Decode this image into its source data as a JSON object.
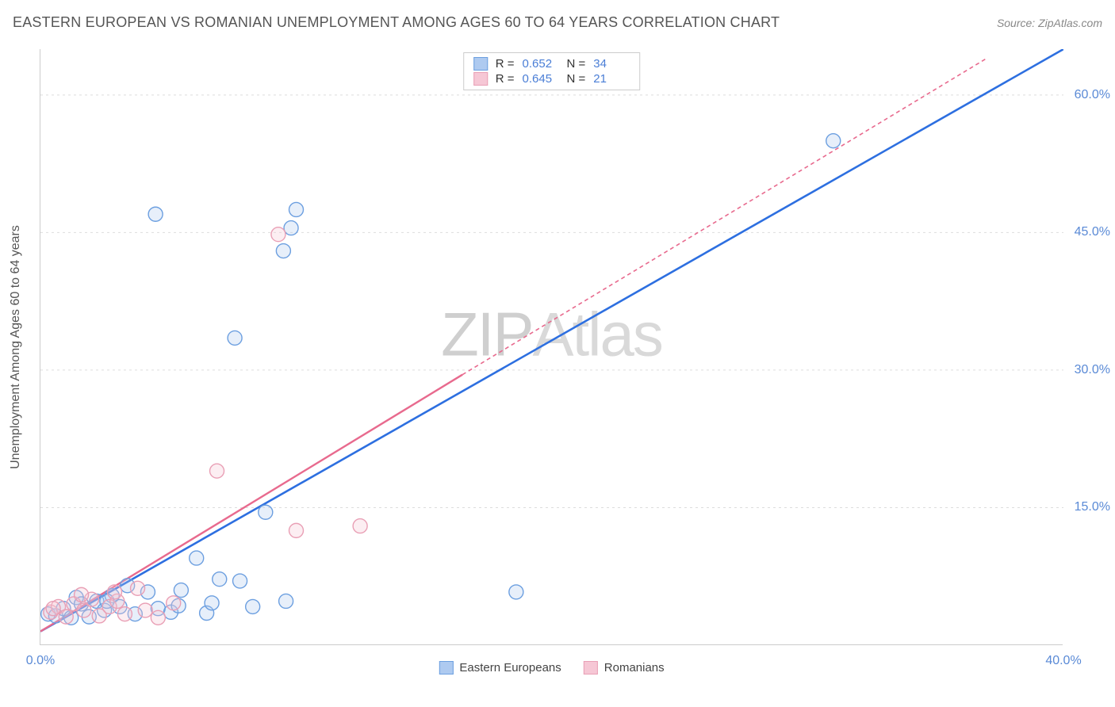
{
  "title": "EASTERN EUROPEAN VS ROMANIAN UNEMPLOYMENT AMONG AGES 60 TO 64 YEARS CORRELATION CHART",
  "source": "Source: ZipAtlas.com",
  "y_label": "Unemployment Among Ages 60 to 64 years",
  "watermark_a": "ZIP",
  "watermark_b": "Atlas",
  "chart": {
    "type": "scatter-regression",
    "xlim": [
      0,
      40
    ],
    "ylim": [
      0,
      65
    ],
    "x_ticks": [
      {
        "v": 0,
        "label": "0.0%"
      },
      {
        "v": 40,
        "label": "40.0%"
      }
    ],
    "y_ticks": [
      {
        "v": 15,
        "label": "15.0%"
      },
      {
        "v": 30,
        "label": "30.0%"
      },
      {
        "v": 45,
        "label": "45.0%"
      },
      {
        "v": 60,
        "label": "60.0%"
      }
    ],
    "grid_color": "#dddddd",
    "axis_color": "#cccccc",
    "background_color": "#ffffff",
    "marker_radius": 9,
    "marker_stroke_width": 1.4,
    "marker_fill_opacity": 0.3,
    "series": [
      {
        "id": "eastern_europeans",
        "label": "Eastern Europeans",
        "color_stroke": "#6c9fe0",
        "color_fill": "#aecaf0",
        "reg_color": "#2d6fe0",
        "reg_dash": "none",
        "R": "0.652",
        "N": "34",
        "points": [
          [
            0.3,
            3.4
          ],
          [
            0.6,
            3.2
          ],
          [
            0.9,
            4.0
          ],
          [
            1.2,
            3.0
          ],
          [
            1.4,
            5.2
          ],
          [
            1.6,
            4.5
          ],
          [
            1.9,
            3.1
          ],
          [
            2.2,
            4.8
          ],
          [
            2.5,
            3.8
          ],
          [
            2.8,
            5.4
          ],
          [
            3.1,
            4.2
          ],
          [
            3.4,
            6.5
          ],
          [
            3.7,
            3.4
          ],
          [
            4.2,
            5.8
          ],
          [
            4.6,
            4.0
          ],
          [
            5.1,
            3.6
          ],
          [
            5.5,
            6.0
          ],
          [
            6.1,
            9.5
          ],
          [
            6.5,
            3.5
          ],
          [
            7.0,
            7.2
          ],
          [
            5.4,
            4.3
          ],
          [
            7.8,
            7.0
          ],
          [
            8.3,
            4.2
          ],
          [
            8.8,
            14.5
          ],
          [
            9.6,
            4.8
          ],
          [
            7.6,
            33.5
          ],
          [
            10.0,
            47.5
          ],
          [
            9.5,
            43.0
          ],
          [
            9.8,
            45.5
          ],
          [
            4.5,
            47.0
          ],
          [
            18.6,
            5.8
          ],
          [
            31.0,
            55.0
          ],
          [
            2.6,
            4.8
          ],
          [
            6.7,
            4.6
          ]
        ],
        "reg_line": {
          "x1": 0,
          "y1": 1.5,
          "x2": 40,
          "y2": 65
        }
      },
      {
        "id": "romanians",
        "label": "Romanians",
        "color_stroke": "#e99fb5",
        "color_fill": "#f6c7d5",
        "reg_color": "#e86a8e",
        "reg_dash": "5,4",
        "R": "0.645",
        "N": "21",
        "points": [
          [
            0.4,
            3.6
          ],
          [
            0.7,
            4.2
          ],
          [
            1.0,
            3.1
          ],
          [
            1.3,
            4.5
          ],
          [
            1.7,
            3.8
          ],
          [
            2.0,
            5.0
          ],
          [
            2.3,
            3.2
          ],
          [
            2.7,
            4.2
          ],
          [
            3.0,
            4.8
          ],
          [
            3.3,
            3.4
          ],
          [
            3.8,
            6.2
          ],
          [
            4.1,
            3.8
          ],
          [
            4.6,
            3.0
          ],
          [
            5.2,
            4.6
          ],
          [
            6.9,
            19.0
          ],
          [
            9.3,
            44.8
          ],
          [
            10.0,
            12.5
          ],
          [
            12.5,
            13.0
          ],
          [
            1.6,
            5.5
          ],
          [
            2.9,
            5.8
          ],
          [
            0.5,
            4.0
          ]
        ],
        "reg_line_solid": {
          "x1": 0,
          "y1": 1.5,
          "x2": 16.5,
          "y2": 29.5
        },
        "reg_line_dashed": {
          "x1": 16.5,
          "y1": 29.5,
          "x2": 37,
          "y2": 64
        }
      }
    ],
    "legend_box": {
      "rows": [
        {
          "swatch_fill": "#aecaf0",
          "swatch_stroke": "#6c9fe0",
          "R_label": "R =",
          "R_val": "0.652",
          "N_label": "N =",
          "N_val": "34"
        },
        {
          "swatch_fill": "#f6c7d5",
          "swatch_stroke": "#e99fb5",
          "R_label": "R =",
          "R_val": "0.645",
          "N_label": "N =",
          "N_val": "21"
        }
      ]
    },
    "bottom_legend": [
      {
        "swatch_fill": "#aecaf0",
        "swatch_stroke": "#6c9fe0",
        "label": "Eastern Europeans"
      },
      {
        "swatch_fill": "#f6c7d5",
        "swatch_stroke": "#e99fb5",
        "label": "Romanians"
      }
    ]
  }
}
